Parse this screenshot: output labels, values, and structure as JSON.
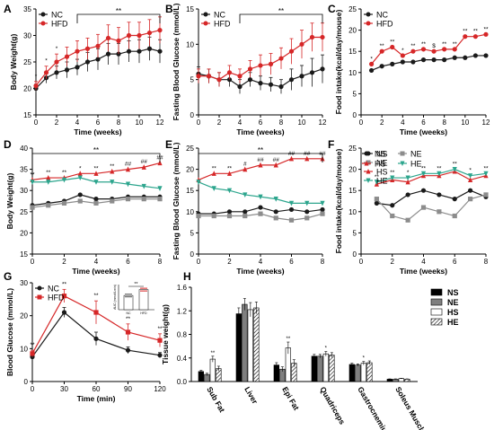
{
  "chart_data": [
    {
      "panel": "A",
      "type": "line",
      "xlabel": "Time (weeks)",
      "ylabel": "Body Weight(g)",
      "xlim": [
        0,
        12
      ],
      "ylim": [
        15,
        35
      ],
      "xticks": [
        0,
        2,
        4,
        6,
        8,
        10,
        12
      ],
      "yticks": [
        15,
        20,
        25,
        30,
        35
      ],
      "legend": "top-left",
      "colors": {
        "NC": "#1a1a1a",
        "HFD": "#d62728"
      },
      "x": [
        0,
        1,
        2,
        3,
        4,
        5,
        6,
        7,
        8,
        9,
        10,
        11,
        12
      ],
      "series": [
        {
          "name": "NC",
          "marker": "circle",
          "values": [
            20,
            22,
            23,
            23.5,
            24,
            25,
            25.5,
            26.5,
            26.5,
            27,
            27,
            27.5,
            27
          ],
          "errors": [
            0.8,
            1,
            1.2,
            1.5,
            1.5,
            1.8,
            2,
            2,
            2,
            2,
            2.2,
            2.2,
            2.2
          ]
        },
        {
          "name": "HFD",
          "marker": "circle",
          "values": [
            20.5,
            23,
            25,
            26,
            27,
            27.5,
            28,
            29.5,
            29,
            30,
            30,
            30.5,
            31
          ],
          "errors": [
            0.8,
            1.2,
            1.5,
            1.8,
            2,
            2,
            2.2,
            2.5,
            2.5,
            2.5,
            2.5,
            2.5,
            2.5
          ]
        }
      ],
      "bracket": {
        "from": 4,
        "to": 12,
        "label": "**"
      },
      "point_marks": [
        {
          "x": 0,
          "label": "*"
        },
        {
          "x": 1,
          "label": "*"
        },
        {
          "x": 2,
          "label": "*"
        }
      ]
    },
    {
      "panel": "B",
      "type": "line",
      "xlabel": "Time (weeks)",
      "ylabel": "Fasting Blood Glucose (mmol/L)",
      "xlim": [
        0,
        12
      ],
      "ylim": [
        0,
        15
      ],
      "xticks": [
        0,
        2,
        4,
        6,
        8,
        10,
        12
      ],
      "yticks": [
        0,
        5,
        10,
        15
      ],
      "legend": "top-left",
      "colors": {
        "NC": "#1a1a1a",
        "HFD": "#d62728"
      },
      "x": [
        0,
        1,
        2,
        3,
        4,
        5,
        6,
        7,
        8,
        9,
        10,
        11,
        12
      ],
      "series": [
        {
          "name": "NC",
          "marker": "circle",
          "values": [
            5.8,
            5.5,
            5,
            5,
            4,
            5,
            4.5,
            4.3,
            4,
            5,
            5.5,
            6,
            6.5
          ],
          "errors": [
            1,
            1,
            1,
            1,
            1,
            1,
            1,
            1,
            1,
            1.5,
            1.5,
            2,
            2
          ]
        },
        {
          "name": "HFD",
          "marker": "circle",
          "values": [
            5.5,
            5.5,
            5,
            6,
            5.5,
            6.5,
            7,
            7.2,
            8,
            9,
            10,
            11,
            11
          ],
          "errors": [
            1,
            1,
            1,
            1,
            1,
            1.2,
            1.5,
            1.5,
            1.5,
            1.8,
            2,
            2,
            2
          ]
        }
      ],
      "bracket": {
        "from": 4,
        "to": 12,
        "label": "**"
      }
    },
    {
      "panel": "C",
      "type": "line",
      "xlabel": "Time (weeks)",
      "ylabel": "Food intake(kcal/day/mouse)",
      "xlim": [
        0,
        12
      ],
      "ylim": [
        0,
        25
      ],
      "xticks": [
        0,
        2,
        4,
        6,
        8,
        10,
        12
      ],
      "yticks": [
        0,
        5,
        10,
        15,
        20,
        25
      ],
      "legend": "top-left",
      "colors": {
        "NC": "#1a1a1a",
        "HFD": "#d62728"
      },
      "x": [
        1,
        2,
        3,
        4,
        5,
        6,
        7,
        8,
        9,
        10,
        11,
        12
      ],
      "series": [
        {
          "name": "NC",
          "marker": "circle",
          "values": [
            10.5,
            11.5,
            12,
            12.5,
            12.5,
            13,
            13,
            13,
            13.5,
            13.5,
            14,
            14
          ]
        },
        {
          "name": "HFD",
          "marker": "circle",
          "values": [
            12,
            15,
            16,
            14,
            15,
            15.5,
            15,
            15.5,
            15.5,
            18.5,
            18.5,
            19
          ]
        }
      ],
      "point_marks": [
        {
          "x": 1,
          "label": "*"
        },
        {
          "x": 2,
          "label": "**"
        },
        {
          "x": 3,
          "label": "**"
        },
        {
          "x": 4,
          "label": "*"
        },
        {
          "x": 5,
          "label": "**"
        },
        {
          "x": 6,
          "label": "**"
        },
        {
          "x": 7,
          "label": "$"
        },
        {
          "x": 8,
          "label": "**"
        },
        {
          "x": 9,
          "label": "**"
        },
        {
          "x": 10,
          "label": "**"
        },
        {
          "x": 11,
          "label": "**"
        },
        {
          "x": 12,
          "label": "**"
        }
      ]
    },
    {
      "panel": "D",
      "type": "line",
      "xlabel": "Time (weeks)",
      "ylabel": "Body Weight(g)",
      "xlim": [
        0,
        8
      ],
      "ylim": [
        15,
        40
      ],
      "xticks": [
        0,
        2,
        4,
        6,
        8
      ],
      "yticks": [
        15,
        20,
        25,
        30,
        35,
        40
      ],
      "colors": {
        "NS": "#1a1a1a",
        "NE": "#8c8c8c",
        "HS": "#d62728",
        "HE": "#2ca58d"
      },
      "x": [
        0,
        1,
        2,
        3,
        4,
        5,
        6,
        7,
        8
      ],
      "series": [
        {
          "name": "NS",
          "marker": "circle",
          "values": [
            26.5,
            27,
            27.5,
            29,
            28,
            28,
            28.5,
            28.5,
            28.5
          ]
        },
        {
          "name": "NE",
          "marker": "square",
          "values": [
            26,
            26.5,
            27,
            27.5,
            27,
            27.5,
            28,
            28,
            28
          ]
        },
        {
          "name": "HS",
          "marker": "triangle",
          "values": [
            32.5,
            33,
            33,
            34,
            34,
            34.5,
            35,
            35.5,
            36.5
          ]
        },
        {
          "name": "HE",
          "marker": "triangle-down",
          "values": [
            32,
            32,
            32.5,
            33,
            32,
            32,
            31.5,
            31,
            30.5
          ]
        }
      ],
      "bracket": {
        "from": 0,
        "to": 8,
        "label": "**"
      },
      "point_marks": [
        {
          "x": 0,
          "label": "**"
        },
        {
          "x": 1,
          "label": "**"
        },
        {
          "x": 2,
          "label": "**"
        },
        {
          "x": 3,
          "label": "*"
        },
        {
          "x": 4,
          "label": "**"
        },
        {
          "x": 5,
          "label": "**"
        },
        {
          "x": 6,
          "label": "##"
        },
        {
          "x": 7,
          "label": "##"
        },
        {
          "x": 8,
          "label": "##"
        }
      ]
    },
    {
      "panel": "E",
      "type": "line",
      "xlabel": "Time (weeks)",
      "ylabel": "Fasting Blood Glucose (mmol/L)",
      "xlim": [
        0,
        8
      ],
      "ylim": [
        0,
        25
      ],
      "xticks": [
        0,
        2,
        4,
        6,
        8
      ],
      "yticks": [
        0,
        5,
        10,
        15,
        20,
        25
      ],
      "colors": {
        "NS": "#1a1a1a",
        "NE": "#8c8c8c",
        "HS": "#d62728",
        "HE": "#2ca58d"
      },
      "x": [
        0,
        1,
        2,
        3,
        4,
        5,
        6,
        7,
        8
      ],
      "series": [
        {
          "name": "NS",
          "marker": "circle",
          "values": [
            9.5,
            9.5,
            10,
            10,
            11,
            10,
            10.5,
            10,
            10.5
          ]
        },
        {
          "name": "NE",
          "marker": "square",
          "values": [
            9,
            9,
            9,
            9,
            9.5,
            8.5,
            8,
            8.5,
            9.5
          ]
        },
        {
          "name": "HS",
          "marker": "triangle",
          "values": [
            17.5,
            19,
            19,
            20,
            21,
            21,
            22.5,
            22.5,
            22.5
          ]
        },
        {
          "name": "HE",
          "marker": "triangle-down",
          "values": [
            17,
            15.5,
            15,
            14,
            13.5,
            13,
            12,
            12,
            12
          ]
        }
      ],
      "bracket": {
        "from": 0,
        "to": 8,
        "label": "**"
      },
      "point_marks": [
        {
          "x": 1,
          "label": "**"
        },
        {
          "x": 2,
          "label": "**"
        },
        {
          "x": 3,
          "label": "#"
        },
        {
          "x": 4,
          "label": "##"
        },
        {
          "x": 5,
          "label": "##"
        },
        {
          "x": 6,
          "label": "##"
        },
        {
          "x": 7,
          "label": "##"
        },
        {
          "x": 8,
          "label": "##"
        }
      ]
    },
    {
      "panel": "F",
      "type": "line",
      "xlabel": "Time (weeks)",
      "ylabel": "Food intake(kcal/day/mouse)",
      "xlim": [
        0,
        8
      ],
      "ylim": [
        0,
        25
      ],
      "xticks": [
        0,
        2,
        4,
        6,
        8
      ],
      "yticks": [
        0,
        5,
        10,
        15,
        20,
        25
      ],
      "legend": "top-left",
      "colors": {
        "NS": "#1a1a1a",
        "NE": "#8c8c8c",
        "HS": "#d62728",
        "HE": "#2ca58d"
      },
      "x": [
        1,
        2,
        3,
        4,
        5,
        6,
        7,
        8
      ],
      "series": [
        {
          "name": "NS",
          "marker": "circle",
          "values": [
            12,
            11.5,
            14,
            15,
            14,
            13,
            15,
            13.5
          ]
        },
        {
          "name": "NE",
          "marker": "square",
          "values": [
            13,
            9,
            8,
            11,
            10,
            9,
            13,
            14
          ]
        },
        {
          "name": "HS",
          "marker": "triangle",
          "values": [
            16.5,
            17.5,
            17,
            18.5,
            18.5,
            19.5,
            17.5,
            18.5
          ]
        },
        {
          "name": "HE",
          "marker": "triangle-down",
          "values": [
            17,
            18,
            18,
            19,
            19,
            20,
            18.5,
            19
          ]
        }
      ],
      "point_marks": [
        {
          "x": 1,
          "label": "**"
        },
        {
          "x": 2,
          "label": "**"
        },
        {
          "x": 3,
          "label": "*"
        },
        {
          "x": 4,
          "label": "**"
        },
        {
          "x": 5,
          "label": "**"
        },
        {
          "x": 6,
          "label": "**"
        },
        {
          "x": 7,
          "label": "*"
        },
        {
          "x": 8,
          "label": "**"
        }
      ]
    },
    {
      "panel": "G",
      "type": "line",
      "xlabel": "Time (min)",
      "ylabel": "Blood Glucose (mmol/L)",
      "xlim": [
        0,
        120
      ],
      "ylim": [
        0,
        30
      ],
      "xticks": [
        0,
        30,
        60,
        90,
        120
      ],
      "yticks": [
        0,
        10,
        20,
        30
      ],
      "legend": "top-left",
      "colors": {
        "NC": "#1a1a1a",
        "HFD": "#d62728"
      },
      "x": [
        0,
        30,
        60,
        90,
        120
      ],
      "series": [
        {
          "name": "NC",
          "marker": "circle",
          "values": [
            7.5,
            21,
            13,
            9.5,
            8
          ],
          "errors": [
            0.8,
            1.5,
            2,
            1,
            0.8
          ]
        },
        {
          "name": "HFD",
          "marker": "square",
          "values": [
            8.5,
            26,
            21,
            15,
            12.5
          ],
          "errors": [
            1,
            2,
            3.5,
            2.5,
            2
          ]
        }
      ],
      "point_marks": [
        {
          "x": 0,
          "label": "**"
        },
        {
          "x": 30,
          "label": "**"
        },
        {
          "x": 60,
          "label": "**"
        },
        {
          "x": 90,
          "label": "**"
        },
        {
          "x": 120,
          "label": "**"
        }
      ],
      "inset": {
        "type": "bar+scatter",
        "xlabel_categories": [
          "NC",
          "HFD"
        ],
        "ylabel": "AUC (mmol/Lmin)",
        "values": [
          1700,
          2400
        ],
        "significance": "**"
      }
    },
    {
      "panel": "H",
      "type": "bar",
      "ylabel": "Tissue weight(g)",
      "ylim": [
        0,
        1.6
      ],
      "yticks": [
        0,
        0.4,
        0.8,
        1.2,
        1.6
      ],
      "legend": "top-right",
      "categories": [
        "Sub Fat",
        "Liver",
        "Epi Fat",
        "Quadriceps",
        "Gastrocnemius",
        "Soleus Muscle"
      ],
      "series": [
        {
          "name": "NS",
          "pattern": "solid-black",
          "values": [
            0.17,
            1.15,
            0.28,
            0.43,
            0.29,
            0.04
          ]
        },
        {
          "name": "NE",
          "pattern": "solid-gray",
          "values": [
            0.12,
            1.31,
            0.21,
            0.43,
            0.28,
            0.04
          ]
        },
        {
          "name": "HS",
          "pattern": "white",
          "values": [
            0.38,
            1.22,
            0.57,
            0.47,
            0.31,
            0.05
          ]
        },
        {
          "name": "HE",
          "pattern": "hatched",
          "values": [
            0.22,
            1.25,
            0.31,
            0.45,
            0.32,
            0.04
          ]
        }
      ],
      "errors": [
        [
          0.02,
          0.1,
          0.04,
          0.03,
          0.02,
          0.005
        ],
        [
          0.02,
          0.1,
          0.04,
          0.03,
          0.02,
          0.005
        ],
        [
          0.05,
          0.12,
          0.1,
          0.04,
          0.03,
          0.005
        ],
        [
          0.04,
          0.1,
          0.06,
          0.04,
          0.03,
          0.005
        ]
      ],
      "marks": [
        "**",
        "",
        "**",
        "*",
        "*",
        ""
      ]
    }
  ]
}
